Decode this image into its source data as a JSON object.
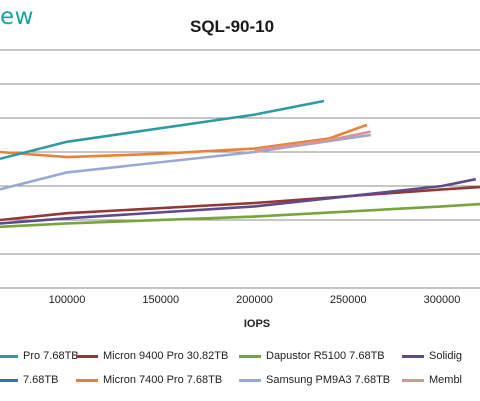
{
  "header": {
    "logo_text": "ew"
  },
  "chart_data": {
    "type": "line",
    "title": "SQL-90-10",
    "xlabel": "IOPS",
    "ylabel": "",
    "x_ticks": [
      "100000",
      "150000",
      "200000",
      "250000",
      "300000"
    ],
    "grid": "horizontal",
    "series": [
      {
        "name": "Micron 9400 Pro 30.82TB",
        "color": "#953735",
        "x": [
          0,
          100000,
          200000,
          300000,
          330000
        ],
        "y": [
          20,
          22,
          25,
          29,
          30
        ]
      },
      {
        "name": "Dapustor R5100 7.68TB",
        "color": "#77a53c",
        "x": [
          0,
          100000,
          200000,
          300000,
          330000
        ],
        "y": [
          18,
          19,
          21,
          24,
          25
        ]
      },
      {
        "name": "Solidig",
        "color": "#5f4b8b",
        "x": [
          0,
          100000,
          200000,
          300000,
          318000
        ],
        "y": [
          19,
          20.5,
          24,
          30,
          32
        ]
      },
      {
        "name": "Micron 7400 Pro 7.68TB",
        "color": "#e98236",
        "x": [
          0,
          100000,
          150000,
          200000,
          240000,
          260000
        ],
        "y": [
          40,
          38.5,
          39.5,
          41,
          44,
          48
        ]
      },
      {
        "name": "Samsung PM9A3 7.68TB",
        "color": "#98a9d6",
        "x": [
          0,
          100000,
          200000,
          262000
        ],
        "y": [
          29,
          34,
          40,
          45
        ]
      },
      {
        "name": "Membl",
        "color": "#d99594",
        "x": [
          200000,
          240000,
          262000
        ],
        "y": [
          40.5,
          43.5,
          46
        ]
      },
      {
        "name": "Pro 7.68TB",
        "color": "#2f9aa6",
        "x": [
          0,
          100000,
          200000,
          237000
        ],
        "y": [
          38,
          43,
          51,
          55
        ]
      }
    ],
    "legend": [
      {
        "label": "Pro 7.68TB",
        "color": "#2f9aa6"
      },
      {
        "label": "Micron 9400 Pro 30.82TB",
        "color": "#953735"
      },
      {
        "label": "Dapustor R5100 7.68TB",
        "color": "#77a53c"
      },
      {
        "label": "Solidig",
        "color": "#5f4b8b"
      },
      {
        "label": "7.68TB",
        "color": "#3f6fb0"
      },
      {
        "label": "Micron 7400 Pro 7.68TB",
        "color": "#e98236"
      },
      {
        "label": "Samsung PM9A3 7.68TB",
        "color": "#98a9d6"
      },
      {
        "label": "Membl",
        "color": "#d99594"
      }
    ]
  }
}
